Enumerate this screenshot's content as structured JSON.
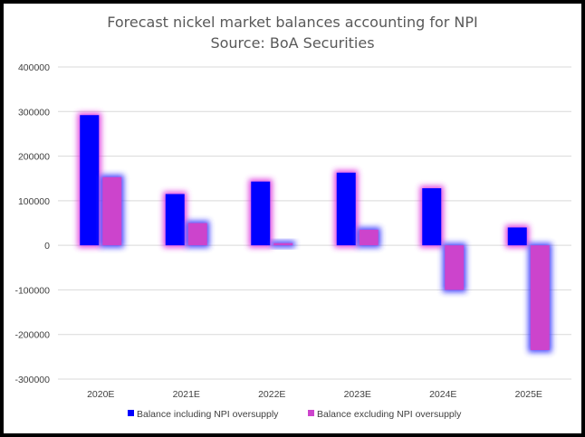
{
  "chart_data": {
    "type": "bar",
    "title": "Forecast nickel market balances accounting for NPI",
    "subtitle": "Source: BoA Securities",
    "categories": [
      "2020E",
      "2021E",
      "2022E",
      "2023E",
      "2024E",
      "2025E"
    ],
    "series": [
      {
        "name": "Balance including NPI oversupply",
        "color": "#0000ff",
        "glow": "#3333ff",
        "values": [
          292000,
          115000,
          143000,
          163000,
          128000,
          40000
        ]
      },
      {
        "name": "Balance excluding NPI oversupply",
        "color": "#cc44cc",
        "glow": "#dd33dd",
        "values": [
          153000,
          50000,
          5000,
          35000,
          -100000,
          -235000
        ]
      }
    ],
    "ylim": [
      -300000,
      400000
    ],
    "yticks": [
      400000,
      300000,
      200000,
      100000,
      0,
      -100000,
      -200000,
      -300000
    ],
    "ytick_labels": [
      "400000",
      "300000",
      "200000",
      "100000",
      "0",
      "-100000",
      "-200000",
      "-300000"
    ],
    "grid": true,
    "legend": "bottom"
  }
}
